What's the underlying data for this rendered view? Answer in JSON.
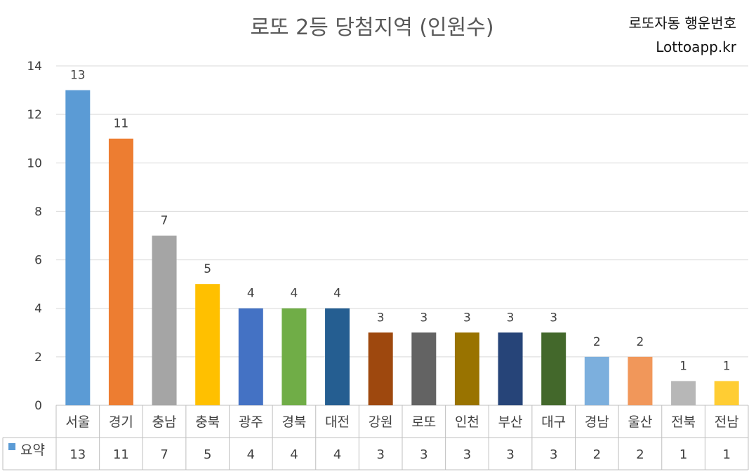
{
  "title": "로또 2등 당첨지역 (인원수)",
  "brand": {
    "line1": "로또자동 행운번호",
    "line2": "Lottoapp.kr"
  },
  "chart_data": {
    "type": "bar",
    "title": "로또 2등 당첨지역 (인원수)",
    "categories": [
      "서울",
      "경기",
      "충남",
      "충북",
      "광주",
      "경북",
      "대전",
      "강원",
      "로또",
      "인천",
      "부산",
      "대구",
      "경남",
      "울산",
      "전북",
      "전남"
    ],
    "series": [
      {
        "name": "요약",
        "values": [
          13,
          11,
          7,
          5,
          4,
          4,
          4,
          3,
          3,
          3,
          3,
          3,
          2,
          2,
          1,
          1
        ]
      }
    ],
    "colors": [
      "#5b9bd5",
      "#ed7d31",
      "#a5a5a5",
      "#ffc000",
      "#4472c4",
      "#70ad47",
      "#255e91",
      "#9e480e",
      "#636363",
      "#997300",
      "#264478",
      "#43682b",
      "#7cafdd",
      "#f1975a",
      "#b7b7b7",
      "#ffcd33"
    ],
    "legend_color": "#5b9bd5",
    "ylim": [
      0,
      14
    ],
    "yticks": [
      0,
      2,
      4,
      6,
      8,
      10,
      12,
      14
    ],
    "grid": true,
    "data_table": true
  }
}
